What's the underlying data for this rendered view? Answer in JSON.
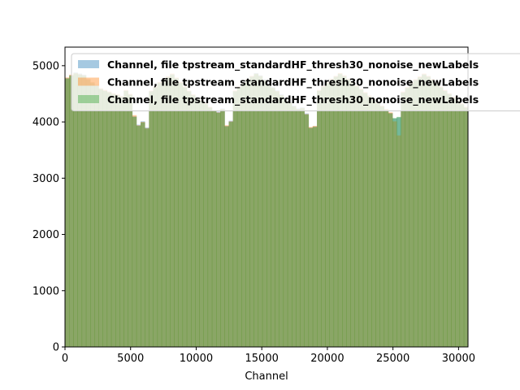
{
  "chart_data": {
    "type": "bar",
    "title": "",
    "xlabel": "Channel",
    "ylabel": "",
    "xlim": [
      0,
      30720
    ],
    "ylim": [
      0,
      5330
    ],
    "x_ticks": [
      0,
      5000,
      10000,
      15000,
      20000,
      25000,
      30000
    ],
    "y_ticks": [
      0,
      1000,
      2000,
      3000,
      4000,
      5000
    ],
    "grid": false,
    "legend_position": "top-right",
    "bin_width": 320,
    "series": [
      {
        "name": "Channel, file tpstream_standardHF_thresh30_nonoise_newLabels",
        "color": "#1f77b4",
        "opacity": 0.4,
        "values": [
          4780,
          4830,
          4880,
          4860,
          4840,
          4760,
          4700,
          4650,
          4590,
          4560,
          4530,
          4500,
          4480,
          4450,
          4560,
          4490,
          4100,
          3950,
          4010,
          3900,
          4550,
          4620,
          4700,
          4760,
          4800,
          4850,
          4780,
          4700,
          4620,
          4550,
          4480,
          4420,
          4380,
          4330,
          4260,
          4200,
          4180,
          4240,
          3930,
          4020,
          4550,
          4620,
          4690,
          4750,
          4810,
          4870,
          4830,
          4760,
          4690,
          4620,
          4560,
          4490,
          4420,
          4360,
          4290,
          4240,
          4260,
          4150,
          3900,
          3920,
          4560,
          4630,
          4700,
          4760,
          4810,
          4860,
          4820,
          4760,
          4700,
          4640,
          4580,
          4520,
          4460,
          4400,
          4340,
          4280,
          4220,
          4160,
          4060,
          4080,
          4530,
          4610,
          4690,
          4750,
          4800,
          4850,
          4810,
          4750,
          4690,
          4620,
          4560,
          4500,
          4440,
          4380,
          4320,
          4260,
          4200,
          4140,
          4080,
          4020,
          4550,
          4620,
          4700,
          4760,
          4810,
          4860,
          4820,
          4760,
          4690,
          4620,
          4560,
          4500,
          4440,
          4380,
          4320,
          4260,
          4200,
          4120,
          3850,
          3980,
          4560,
          4630,
          4700,
          4770,
          4830,
          4880,
          4840,
          4780,
          4710,
          4650,
          4580,
          4520,
          4460,
          4400,
          4340,
          4280,
          4220,
          4180,
          4150,
          4200,
          4560,
          4630,
          4700,
          4770,
          4830,
          4880,
          4830,
          4770,
          4700,
          4640,
          4580,
          4520,
          4460,
          4400,
          4340,
          4280,
          4220,
          4160,
          3900,
          4000,
          4600,
          4660,
          4720,
          4780,
          4840,
          4890,
          4850,
          4790,
          4730,
          4670,
          4610,
          4550,
          4490,
          4430,
          4370,
          4310,
          4250,
          4210,
          4170,
          4130,
          4580,
          4650,
          4720,
          4780,
          4840,
          4890,
          4850,
          4790,
          4730,
          4670,
          4610,
          4550,
          4490,
          4430,
          4370,
          4310,
          4250,
          4190,
          3940,
          4010,
          4560,
          4630,
          4700,
          4770,
          4830,
          4880,
          4840,
          4780,
          4720,
          4660,
          4600,
          4540,
          4480,
          4420,
          4360,
          4300,
          4240,
          4180,
          3920,
          3930,
          4560,
          4630,
          4700,
          4770,
          4830,
          4880,
          4840,
          4780,
          4720,
          4660,
          4600,
          4540,
          4480,
          4420,
          4360,
          4300,
          4240,
          4180,
          4130,
          4100,
          4560,
          4630,
          4700,
          4770,
          4830,
          4880,
          4840,
          4780,
          4720,
          4660,
          4600,
          4540,
          4480,
          4420,
          4360,
          4300,
          4200,
          4110,
          4020,
          3920,
          4560,
          4630,
          4700,
          4770,
          4830,
          4880,
          4840,
          4780,
          4720,
          4660,
          4600,
          4540,
          4480,
          4420,
          4360,
          4300,
          4240,
          4120,
          4040,
          4060,
          4560,
          4630,
          4700,
          4770,
          4830,
          4880,
          4840,
          4780,
          4720,
          4660,
          4600,
          4540,
          4480,
          4420,
          4360,
          4300,
          4240,
          4180,
          4000,
          3940,
          4560,
          4630,
          4700,
          4770,
          4830,
          4880,
          4840,
          4780,
          4720,
          4660,
          4600,
          4540,
          4480,
          4420,
          4360,
          4300,
          4240,
          4180,
          4060,
          4100,
          4560,
          4630,
          4700,
          4770,
          4830,
          4880,
          4840,
          4780,
          4720,
          4660,
          4600,
          4540,
          4480,
          4420,
          4360,
          4300,
          4240,
          4180,
          4120,
          4060,
          4000,
          3950
        ]
      },
      {
        "name": "Channel, file tpstream_standardHF_thresh30_nonoise_newLabels",
        "color": "#ff7f0e",
        "opacity": 0.4,
        "values": [
          4790,
          4840,
          4870,
          4850,
          4830,
          4770,
          4710,
          4660,
          4600,
          4570,
          4540,
          4510,
          4490,
          4460,
          4570,
          4500,
          4120,
          3940,
          4000,
          3890,
          4560,
          4630,
          4710,
          4770,
          4810,
          4860,
          4790,
          4710,
          4630,
          4560,
          4490,
          4430,
          4390,
          4340,
          4270,
          4210,
          4170,
          4230,
          3940,
          4010,
          4560,
          4630,
          4700,
          4760,
          4820,
          4860,
          4820,
          4750,
          4680,
          4610,
          4550,
          4480,
          4410,
          4350,
          4280,
          4230,
          4250,
          4140,
          3910,
          3930,
          4570,
          4640,
          4710,
          4770,
          4820,
          4870,
          4830,
          4770,
          4710,
          4650,
          4590,
          4530,
          4470,
          4410,
          4350,
          4290,
          4230,
          4170,
          4010,
          3760,
          4540,
          4620,
          4700,
          4760,
          4810,
          4860,
          4820,
          4760,
          4700,
          4630,
          4570,
          4510,
          4450,
          4390,
          4330,
          4270,
          4210,
          4150,
          4090,
          4030,
          4560,
          4630,
          4710,
          4770,
          4820,
          4870,
          4830,
          4770,
          4700,
          4630,
          4570,
          4510,
          4450,
          4390,
          4330,
          4270,
          4210,
          4110,
          3860,
          3970,
          4570,
          4640,
          4710,
          4780,
          4840,
          4890,
          4850,
          4790,
          4720,
          4660,
          4590,
          4530,
          4470,
          4410,
          4350,
          4290,
          4230,
          4170,
          3890,
          4190,
          4570,
          4640,
          4710,
          4780,
          4840,
          4890,
          4840,
          4780,
          4710,
          4650,
          4590,
          4530,
          4470,
          4410,
          4350,
          4290,
          4230,
          4150,
          3900,
          3860,
          4610,
          4670,
          4730,
          4790,
          4850,
          4900,
          4860,
          4800,
          4740,
          4680,
          4620,
          4560,
          4500,
          4440,
          4380,
          4320,
          4260,
          4200,
          4160,
          4120,
          4590,
          4660,
          4730,
          4790,
          4850,
          4900,
          4860,
          4800,
          4740,
          4680,
          4620,
          4560,
          4500,
          4440,
          4380,
          4320,
          4260,
          4180,
          3930,
          4000,
          4570,
          4640,
          4710,
          4780,
          4840,
          4890,
          4850,
          4790,
          4730,
          4670,
          4610,
          4550,
          4490,
          4430,
          4370,
          4310,
          4250,
          4100,
          3880,
          3950,
          4570,
          4640,
          4710,
          4780,
          4840,
          4890,
          4850,
          4790,
          4730,
          4670,
          4610,
          4550,
          4490,
          4430,
          4370,
          4310,
          4250,
          4190,
          4140,
          4110,
          4570,
          4640,
          4710,
          4780,
          4840,
          4890,
          4850,
          4790,
          4730,
          4670,
          4610,
          4550,
          4490,
          4430,
          4370,
          4310,
          4210,
          4120,
          4030,
          3930,
          4570,
          4640,
          4710,
          4780,
          4840,
          4890,
          4850,
          4790,
          4730,
          4670,
          4610,
          4550,
          4490,
          4430,
          4370,
          4310,
          4250,
          4130,
          4050,
          4070,
          4570,
          4640,
          4710,
          4780,
          4840,
          4890,
          4850,
          4790,
          4730,
          4670,
          4610,
          4550,
          4490,
          4430,
          4370,
          4310,
          4250,
          4190,
          4010,
          3950,
          4570,
          4640,
          4710,
          4780,
          4840,
          4890,
          4850,
          4790,
          4730,
          4670,
          4610,
          4550,
          4490,
          4430,
          4370,
          4310,
          4250,
          4130,
          4070,
          4110,
          4570,
          4640,
          4710,
          4780,
          4840,
          4890,
          4850,
          4790,
          4730,
          4670,
          4610,
          4550,
          4490,
          4430,
          4370,
          4310,
          4250,
          4190,
          4130,
          4070,
          4010,
          3960
        ]
      },
      {
        "name": "Channel, file tpstream_standardHF_thresh30_nonoise_newLabels",
        "color": "#2ca02c",
        "opacity": 0.4,
        "values": [
          4770,
          4820,
          4860,
          4840,
          4820,
          4750,
          4690,
          4640,
          4580,
          4550,
          4520,
          4490,
          4470,
          4440,
          4550,
          4480,
          4090,
          3930,
          3990,
          3880,
          4540,
          4610,
          4690,
          4750,
          4790,
          4840,
          4770,
          4690,
          4610,
          4540,
          4470,
          4410,
          4370,
          4320,
          4250,
          4190,
          4160,
          4220,
          3920,
          4000,
          4540,
          4610,
          4680,
          4740,
          4800,
          4850,
          4810,
          4740,
          4670,
          4600,
          4540,
          4470,
          4400,
          4340,
          4270,
          4220,
          4240,
          4130,
          3890,
          3910,
          4550,
          4620,
          4690,
          4750,
          4800,
          4850,
          4810,
          4750,
          4690,
          4630,
          4570,
          4510,
          4450,
          4390,
          4330,
          4270,
          4210,
          4150,
          4070,
          4090,
          4520,
          4600,
          4680,
          4740,
          4790,
          4840,
          4800,
          4740,
          4680,
          4610,
          4550,
          4490,
          4430,
          4370,
          4310,
          4250,
          4190,
          4130,
          4070,
          4010,
          4540,
          4610,
          4690,
          4750,
          4800,
          4850,
          4810,
          4750,
          4680,
          4610,
          4550,
          4490,
          4430,
          4370,
          4310,
          4250,
          4190,
          4110,
          3840,
          3970,
          4550,
          4620,
          4690,
          4760,
          4820,
          4870,
          4830,
          4770,
          4700,
          4640,
          4570,
          4510,
          4450,
          4390,
          4330,
          4270,
          4210,
          4150,
          4120,
          4100,
          4550,
          4620,
          4690,
          4760,
          4820,
          4870,
          4820,
          4760,
          4690,
          4630,
          4570,
          4510,
          4450,
          4390,
          4330,
          4270,
          4210,
          4170,
          3890,
          3820,
          4590,
          4650,
          4710,
          4770,
          4830,
          4880,
          4840,
          4780,
          4720,
          4660,
          4600,
          4540,
          4480,
          4420,
          4360,
          4300,
          4240,
          4140,
          4130,
          4120,
          4570,
          4640,
          4710,
          4770,
          4830,
          4880,
          4840,
          4780,
          4720,
          4660,
          4600,
          4540,
          4480,
          4420,
          4360,
          4300,
          4240,
          4180,
          3930,
          4000,
          4550,
          4620,
          4690,
          4760,
          4820,
          4870,
          4830,
          4770,
          4710,
          4650,
          4590,
          4530,
          4470,
          4410,
          4350,
          4290,
          4230,
          4060,
          3840,
          3900,
          4550,
          4620,
          4690,
          4760,
          4820,
          4870,
          4830,
          4770,
          4710,
          4650,
          4590,
          4530,
          4470,
          4410,
          4350,
          4290,
          4230,
          4170,
          4120,
          4090,
          4550,
          4620,
          4690,
          4760,
          4820,
          4870,
          4830,
          4770,
          4710,
          4650,
          4590,
          4530,
          4470,
          4410,
          4350,
          4290,
          4190,
          4100,
          3950,
          3880,
          4550,
          4620,
          4690,
          4760,
          4820,
          4870,
          4830,
          4770,
          4710,
          4650,
          4590,
          4530,
          4470,
          4410,
          4350,
          4290,
          4230,
          4110,
          4030,
          4050,
          4550,
          4620,
          4690,
          4760,
          4820,
          4870,
          4830,
          4770,
          4710,
          4650,
          4590,
          4530,
          4470,
          4410,
          4350,
          4290,
          4230,
          4170,
          3990,
          3930,
          4550,
          4620,
          4690,
          4760,
          4820,
          4870,
          4830,
          4770,
          4710,
          4650,
          4590,
          4530,
          4470,
          4410,
          4350,
          4290,
          4230,
          4170,
          4050,
          4090,
          4550,
          4620,
          4690,
          4760,
          4820,
          4870,
          4830,
          4770,
          4710,
          4650,
          4590,
          4530,
          4470,
          4410,
          4350,
          4290,
          4230,
          4170,
          4110,
          4050,
          3990,
          3940
        ]
      }
    ]
  }
}
